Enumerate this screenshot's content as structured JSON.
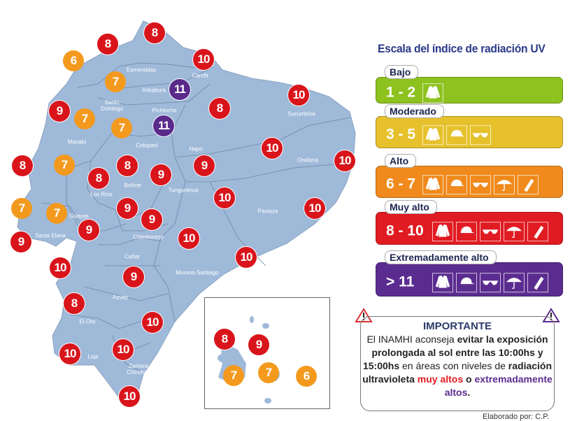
{
  "legend": {
    "title": "Escala del índice de radiación UV",
    "levels": [
      {
        "name": "Bajo",
        "range": "1 - 2",
        "color": "#8dc21f",
        "icons": [
          "jacket-icon"
        ]
      },
      {
        "name": "Moderado",
        "range": "3 - 5",
        "color": "#e6c12c",
        "icons": [
          "jacket-icon",
          "cap-icon",
          "sunglasses-icon"
        ]
      },
      {
        "name": "Alto",
        "range": "6 - 7",
        "color": "#f08a1c",
        "icons": [
          "jacket-icon",
          "cap-icon",
          "sunglasses-icon",
          "umbrella-icon",
          "sunscreen-icon"
        ]
      },
      {
        "name": "Muy alto",
        "range": "8 - 10",
        "color": "#e01b22",
        "icons": [
          "jacket-icon",
          "cap-icon",
          "sunglasses-icon",
          "umbrella-icon",
          "sunscreen-icon"
        ]
      },
      {
        "name": "Extremadamente alto",
        "range": "> 11",
        "color": "#5b2c8f",
        "icons": [
          "jacket-icon",
          "cap-icon",
          "sunglasses-icon",
          "umbrella-icon",
          "sunscreen-icon"
        ]
      }
    ]
  },
  "important": {
    "heading": "IMPORTANTE",
    "t1": "El INAMHI aconseja ",
    "t2": "evitar la exposición prolongada al sol entre las 10:00hs y 15:00hs",
    "t3": " en áreas con niveles de ",
    "t4": "radiación ultravioleta",
    "t5": " ",
    "t6": "muy altos",
    "t7": " o ",
    "t8": "extremadamente altos",
    "t9": "."
  },
  "credit": "Elaborado por: C.P.",
  "map": {
    "fill": "#9fb9d9",
    "provinces": [
      "Esmeraldas",
      "Carchi",
      "Imbabura",
      "Santo Domingo",
      "Pichincha",
      "Sucumbíos",
      "Manabí",
      "Cotopaxi",
      "Napo",
      "Orellana",
      "Bolívar",
      "Tungurahua",
      "Los Ríos",
      "Guayas",
      "Pastaza",
      "Santa Elena",
      "Chimborazo",
      "Cañar",
      "Morona-Santiago",
      "Azuay",
      "El Oro",
      "Loja",
      "Zamora-Chinchipe"
    ],
    "uv_values": [
      8,
      8,
      6,
      10,
      7,
      11,
      10,
      9,
      8,
      7,
      7,
      11,
      10,
      10,
      8,
      7,
      8,
      9,
      9,
      8,
      10,
      7,
      7,
      9,
      9,
      10,
      9,
      10,
      9,
      10,
      10,
      9,
      8,
      10,
      10,
      10,
      10
    ],
    "galapagos_uv_values": [
      8,
      9,
      7,
      7,
      6
    ]
  },
  "marker_colors": {
    "6-7": "#f39a1e",
    "8-10": "#d9141b",
    "11+": "#5a2a8a"
  }
}
